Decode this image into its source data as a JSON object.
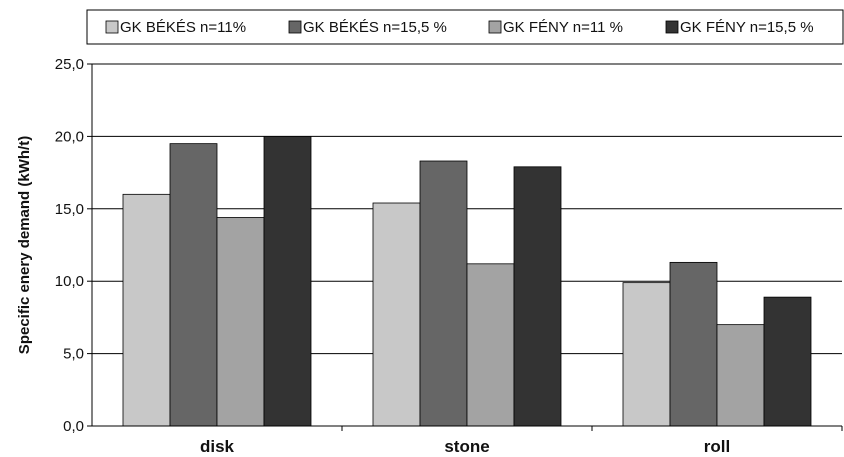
{
  "chart_data": {
    "type": "bar",
    "title": "",
    "xlabel": "",
    "ylabel": "Specific enery demand (kWh/t)",
    "categories": [
      "disk",
      "stone",
      "roll"
    ],
    "series": [
      {
        "name": "GK BÉKÉS n=11%",
        "color": "#c8c8c8",
        "values": [
          16.0,
          15.4,
          9.9
        ]
      },
      {
        "name": "GK BÉKÉS n=15,5 %",
        "color": "#666666",
        "values": [
          19.5,
          18.3,
          11.3
        ]
      },
      {
        "name": "GK FÉNY n=11 %",
        "color": "#a3a3a3",
        "values": [
          14.4,
          11.2,
          7.0
        ]
      },
      {
        "name": "GK FÉNY n=15,5 %",
        "color": "#333333",
        "values": [
          20.0,
          17.9,
          8.9
        ]
      }
    ],
    "yticks": [
      "0,0",
      "5,0",
      "10,0",
      "15,0",
      "20,0",
      "25,0"
    ],
    "ylim": [
      0,
      25
    ],
    "grid": true,
    "legend": "top"
  }
}
